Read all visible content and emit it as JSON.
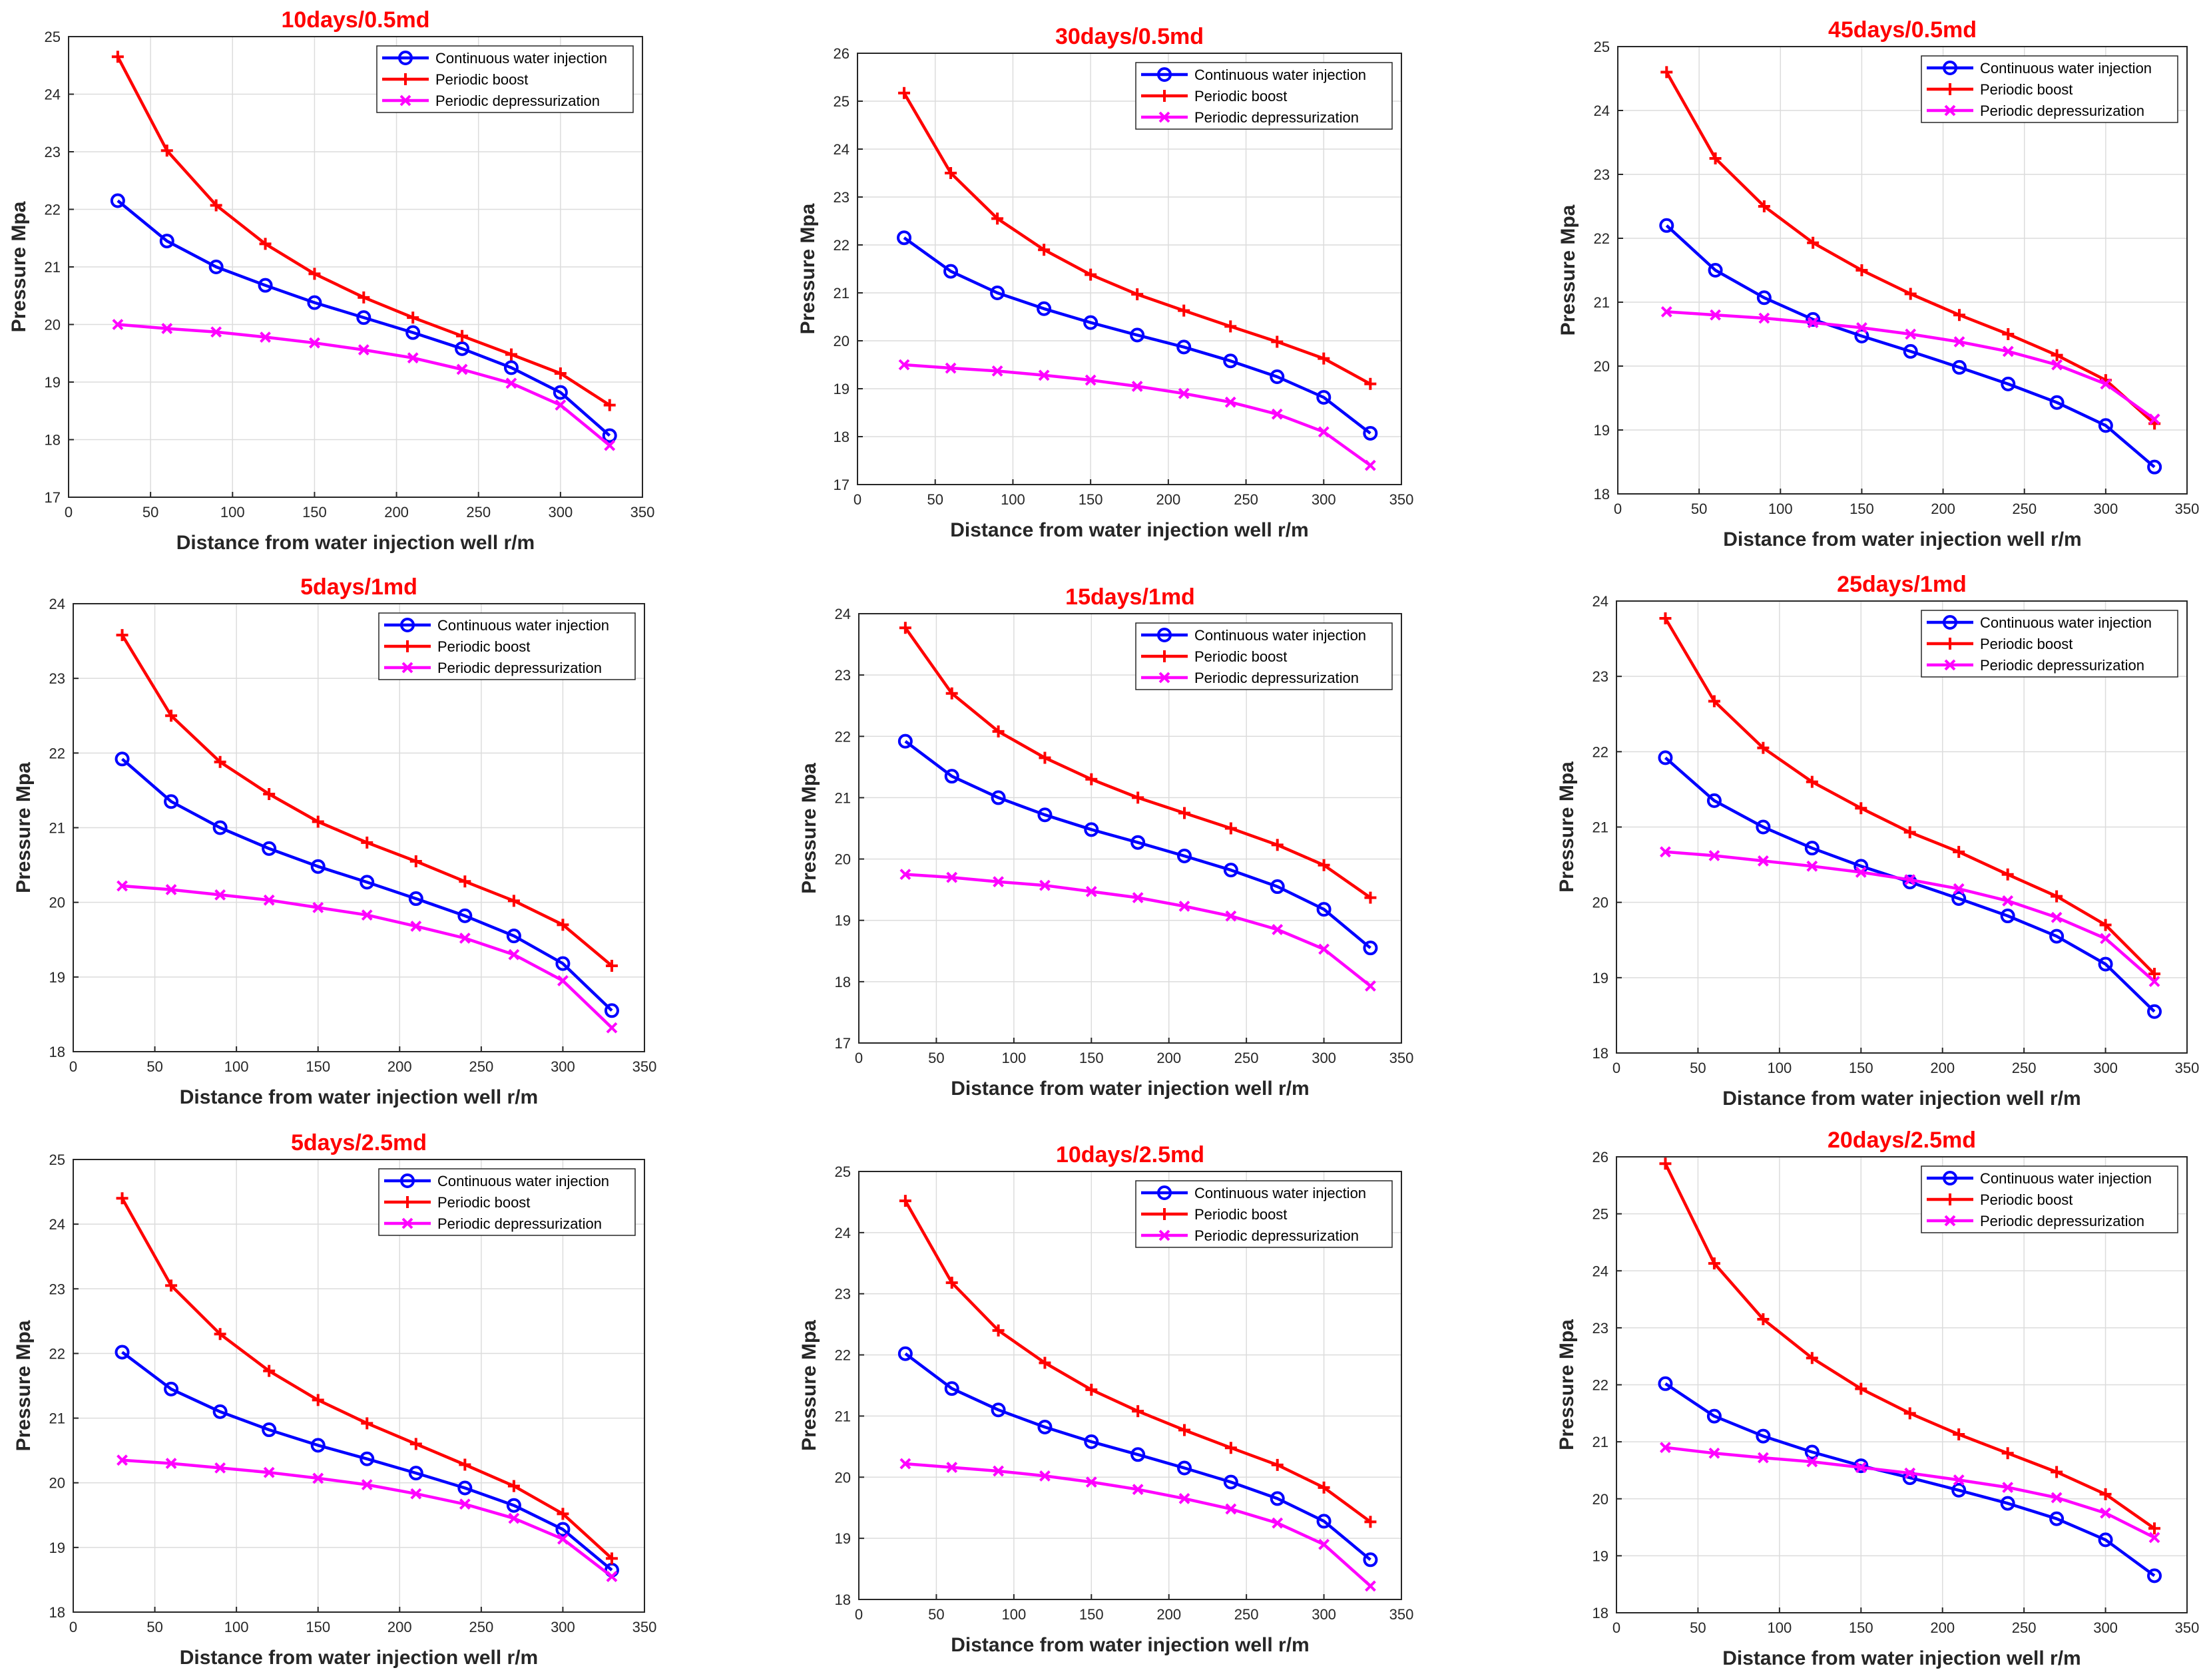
{
  "colors": {
    "continuous": "#0000ff",
    "boost": "#ff0000",
    "depressurization": "#ff00ff",
    "title": "#ff0000",
    "grid": "#dcdcdc"
  },
  "chart_data": [
    {
      "type": "line",
      "title": "10days/0.5md",
      "xlabel": "Distance from water injection well  r/m",
      "ylabel": "Pressure  Mpa",
      "xlim": [
        0,
        350
      ],
      "ylim": [
        17,
        25
      ],
      "xticks": [
        0,
        50,
        100,
        150,
        200,
        250,
        300,
        350
      ],
      "yticks": [
        17,
        18,
        19,
        20,
        21,
        22,
        23,
        24,
        25
      ],
      "grid": true,
      "legend": "top-right",
      "x": [
        30,
        60,
        90,
        120,
        150,
        180,
        210,
        240,
        270,
        300,
        330
      ],
      "series": [
        {
          "name": "Continuous water injection",
          "marker": "circle",
          "values": [
            22.15,
            21.45,
            21.0,
            20.68,
            20.38,
            20.12,
            19.86,
            19.58,
            19.25,
            18.82,
            18.07
          ]
        },
        {
          "name": "Periodic boost",
          "marker": "plus",
          "values": [
            24.65,
            23.02,
            22.07,
            21.4,
            20.88,
            20.47,
            20.12,
            19.8,
            19.48,
            19.15,
            18.6
          ]
        },
        {
          "name": "Periodic depressurization",
          "marker": "x",
          "values": [
            20.0,
            19.93,
            19.87,
            19.78,
            19.68,
            19.56,
            19.42,
            19.22,
            18.98,
            18.6,
            17.9
          ]
        }
      ]
    },
    {
      "type": "line",
      "title": "30days/0.5md",
      "xlabel": "Distance from water injection well  r/m",
      "ylabel": "Pressure  Mpa",
      "xlim": [
        0,
        350
      ],
      "ylim": [
        17,
        26
      ],
      "xticks": [
        0,
        50,
        100,
        150,
        200,
        250,
        300,
        350
      ],
      "yticks": [
        17,
        18,
        19,
        20,
        21,
        22,
        23,
        24,
        25,
        26
      ],
      "grid": true,
      "legend": "top-right",
      "x": [
        30,
        60,
        90,
        120,
        150,
        180,
        210,
        240,
        270,
        300,
        330
      ],
      "series": [
        {
          "name": "Continuous water injection",
          "marker": "circle",
          "values": [
            22.15,
            21.45,
            21.0,
            20.67,
            20.38,
            20.12,
            19.87,
            19.58,
            19.25,
            18.82,
            18.07
          ]
        },
        {
          "name": "Periodic boost",
          "marker": "plus",
          "values": [
            25.17,
            23.5,
            22.55,
            21.9,
            21.38,
            20.97,
            20.63,
            20.3,
            19.98,
            19.63,
            19.1
          ]
        },
        {
          "name": "Periodic depressurization",
          "marker": "x",
          "values": [
            19.5,
            19.43,
            19.37,
            19.28,
            19.18,
            19.05,
            18.9,
            18.72,
            18.47,
            18.1,
            17.4
          ]
        }
      ]
    },
    {
      "type": "line",
      "title": "45days/0.5md",
      "xlabel": "Distance from water injection well  r/m",
      "ylabel": "Pressure  Mpa",
      "xlim": [
        0,
        350
      ],
      "ylim": [
        18,
        25
      ],
      "xticks": [
        0,
        50,
        100,
        150,
        200,
        250,
        300,
        350
      ],
      "yticks": [
        18,
        19,
        20,
        21,
        22,
        23,
        24,
        25
      ],
      "grid": true,
      "legend": "top-right",
      "x": [
        30,
        60,
        90,
        120,
        150,
        180,
        210,
        240,
        270,
        300,
        330
      ],
      "series": [
        {
          "name": "Continuous water injection",
          "marker": "circle",
          "values": [
            22.2,
            21.5,
            21.07,
            20.73,
            20.47,
            20.23,
            19.98,
            19.72,
            19.43,
            19.07,
            18.42
          ]
        },
        {
          "name": "Periodic boost",
          "marker": "plus",
          "values": [
            24.6,
            23.25,
            22.5,
            21.93,
            21.5,
            21.13,
            20.8,
            20.5,
            20.17,
            19.78,
            19.1
          ]
        },
        {
          "name": "Periodic depressurization",
          "marker": "x",
          "values": [
            20.85,
            20.8,
            20.75,
            20.68,
            20.6,
            20.5,
            20.38,
            20.23,
            20.02,
            19.72,
            19.17
          ]
        }
      ]
    },
    {
      "type": "line",
      "title": "5days/1md",
      "xlabel": "Distance from water injection well  r/m",
      "ylabel": "Pressure  Mpa",
      "xlim": [
        0,
        350
      ],
      "ylim": [
        18,
        24
      ],
      "xticks": [
        0,
        50,
        100,
        150,
        200,
        250,
        300,
        350
      ],
      "yticks": [
        18,
        19,
        20,
        21,
        22,
        23,
        24
      ],
      "grid": true,
      "legend": "top-right",
      "x": [
        30,
        60,
        90,
        120,
        150,
        180,
        210,
        240,
        270,
        300,
        330
      ],
      "series": [
        {
          "name": "Continuous water injection",
          "marker": "circle",
          "values": [
            21.92,
            21.35,
            21.0,
            20.72,
            20.48,
            20.27,
            20.05,
            19.82,
            19.55,
            19.18,
            18.55
          ]
        },
        {
          "name": "Periodic boost",
          "marker": "plus",
          "values": [
            23.58,
            22.5,
            21.88,
            21.45,
            21.08,
            20.8,
            20.55,
            20.28,
            20.02,
            19.7,
            19.15
          ]
        },
        {
          "name": "Periodic depressurization",
          "marker": "x",
          "values": [
            20.22,
            20.17,
            20.1,
            20.03,
            19.93,
            19.83,
            19.68,
            19.52,
            19.3,
            18.95,
            18.32
          ]
        }
      ]
    },
    {
      "type": "line",
      "title": "15days/1md",
      "xlabel": "Distance from water injection well  r/m",
      "ylabel": "Pressure  Mpa",
      "xlim": [
        0,
        350
      ],
      "ylim": [
        17,
        24
      ],
      "xticks": [
        0,
        50,
        100,
        150,
        200,
        250,
        300,
        350
      ],
      "yticks": [
        17,
        18,
        19,
        20,
        21,
        22,
        23,
        24
      ],
      "grid": true,
      "legend": "top-right",
      "x": [
        30,
        60,
        90,
        120,
        150,
        180,
        210,
        240,
        270,
        300,
        330
      ],
      "series": [
        {
          "name": "Continuous water injection",
          "marker": "circle",
          "values": [
            21.92,
            21.35,
            21.0,
            20.72,
            20.48,
            20.27,
            20.05,
            19.82,
            19.55,
            19.18,
            18.55
          ]
        },
        {
          "name": "Periodic boost",
          "marker": "plus",
          "values": [
            23.77,
            22.7,
            22.08,
            21.65,
            21.3,
            21.0,
            20.75,
            20.5,
            20.23,
            19.9,
            19.37
          ]
        },
        {
          "name": "Periodic depressurization",
          "marker": "x",
          "values": [
            19.75,
            19.7,
            19.63,
            19.57,
            19.47,
            19.37,
            19.23,
            19.07,
            18.85,
            18.53,
            17.93
          ]
        }
      ]
    },
    {
      "type": "line",
      "title": "25days/1md",
      "xlabel": "Distance from water injection well  r/m",
      "ylabel": "Pressure  Mpa",
      "xlim": [
        0,
        350
      ],
      "ylim": [
        18,
        24
      ],
      "xticks": [
        0,
        50,
        100,
        150,
        200,
        250,
        300,
        350
      ],
      "yticks": [
        18,
        19,
        20,
        21,
        22,
        23,
        24
      ],
      "grid": true,
      "legend": "top-right",
      "x": [
        30,
        60,
        90,
        120,
        150,
        180,
        210,
        240,
        270,
        300,
        330
      ],
      "series": [
        {
          "name": "Continuous water injection",
          "marker": "circle",
          "values": [
            21.92,
            21.35,
            21.0,
            20.72,
            20.48,
            20.27,
            20.05,
            19.82,
            19.55,
            19.18,
            18.55
          ]
        },
        {
          "name": "Periodic boost",
          "marker": "plus",
          "values": [
            23.77,
            22.67,
            22.05,
            21.6,
            21.25,
            20.93,
            20.67,
            20.37,
            20.08,
            19.7,
            19.05
          ]
        },
        {
          "name": "Periodic depressurization",
          "marker": "x",
          "values": [
            20.67,
            20.62,
            20.55,
            20.48,
            20.4,
            20.3,
            20.18,
            20.02,
            19.8,
            19.52,
            18.95
          ]
        }
      ]
    },
    {
      "type": "line",
      "title": "5days/2.5md",
      "xlabel": "Distance from water injection well  r/m",
      "ylabel": "Pressure  Mpa",
      "xlim": [
        0,
        350
      ],
      "ylim": [
        18,
        25
      ],
      "xticks": [
        0,
        50,
        100,
        150,
        200,
        250,
        300,
        350
      ],
      "yticks": [
        18,
        19,
        20,
        21,
        22,
        23,
        24,
        25
      ],
      "grid": true,
      "legend": "top-right",
      "x": [
        30,
        60,
        90,
        120,
        150,
        180,
        210,
        240,
        270,
        300,
        330
      ],
      "series": [
        {
          "name": "Continuous water injection",
          "marker": "circle",
          "values": [
            22.02,
            21.45,
            21.1,
            20.82,
            20.58,
            20.37,
            20.15,
            19.92,
            19.65,
            19.28,
            18.65
          ]
        },
        {
          "name": "Periodic boost",
          "marker": "plus",
          "values": [
            24.4,
            23.05,
            22.3,
            21.73,
            21.28,
            20.92,
            20.6,
            20.28,
            19.95,
            19.52,
            18.83
          ]
        },
        {
          "name": "Periodic depressurization",
          "marker": "x",
          "values": [
            20.35,
            20.3,
            20.23,
            20.16,
            20.07,
            19.97,
            19.83,
            19.67,
            19.45,
            19.13,
            18.55
          ]
        }
      ]
    },
    {
      "type": "line",
      "title": "10days/2.5md",
      "xlabel": "Distance from water injection well  r/m",
      "ylabel": "Pressure  Mpa",
      "xlim": [
        0,
        350
      ],
      "ylim": [
        18,
        25
      ],
      "xticks": [
        0,
        50,
        100,
        150,
        200,
        250,
        300,
        350
      ],
      "yticks": [
        18,
        19,
        20,
        21,
        22,
        23,
        24,
        25
      ],
      "grid": true,
      "legend": "top-right",
      "x": [
        30,
        60,
        90,
        120,
        150,
        180,
        210,
        240,
        270,
        300,
        330
      ],
      "series": [
        {
          "name": "Continuous water injection",
          "marker": "circle",
          "values": [
            22.02,
            21.45,
            21.1,
            20.82,
            20.58,
            20.37,
            20.15,
            19.92,
            19.65,
            19.28,
            18.65
          ]
        },
        {
          "name": "Periodic boost",
          "marker": "plus",
          "values": [
            24.52,
            23.18,
            22.4,
            21.87,
            21.43,
            21.08,
            20.77,
            20.48,
            20.2,
            19.83,
            19.27
          ]
        },
        {
          "name": "Periodic depressurization",
          "marker": "x",
          "values": [
            20.22,
            20.16,
            20.1,
            20.02,
            19.92,
            19.8,
            19.65,
            19.48,
            19.25,
            18.9,
            18.22
          ]
        }
      ]
    },
    {
      "type": "line",
      "title": "20days/2.5md",
      "xlabel": "Distance from water injection well  r/m",
      "ylabel": "Pressure  Mpa",
      "xlim": [
        0,
        350
      ],
      "ylim": [
        18,
        26
      ],
      "xticks": [
        0,
        50,
        100,
        150,
        200,
        250,
        300,
        350
      ],
      "yticks": [
        18,
        19,
        20,
        21,
        22,
        23,
        24,
        25,
        26
      ],
      "grid": true,
      "legend": "top-right",
      "x": [
        30,
        60,
        90,
        120,
        150,
        180,
        210,
        240,
        270,
        300,
        330
      ],
      "series": [
        {
          "name": "Continuous water injection",
          "marker": "circle",
          "values": [
            22.02,
            21.45,
            21.1,
            20.82,
            20.58,
            20.37,
            20.15,
            19.92,
            19.65,
            19.28,
            18.65
          ]
        },
        {
          "name": "Periodic boost",
          "marker": "plus",
          "values": [
            25.88,
            24.13,
            23.15,
            22.47,
            21.93,
            21.5,
            21.13,
            20.8,
            20.47,
            20.08,
            19.48
          ]
        },
        {
          "name": "Periodic depressurization",
          "marker": "x",
          "values": [
            20.9,
            20.8,
            20.72,
            20.65,
            20.55,
            20.45,
            20.33,
            20.2,
            20.02,
            19.75,
            19.32
          ]
        }
      ]
    }
  ]
}
